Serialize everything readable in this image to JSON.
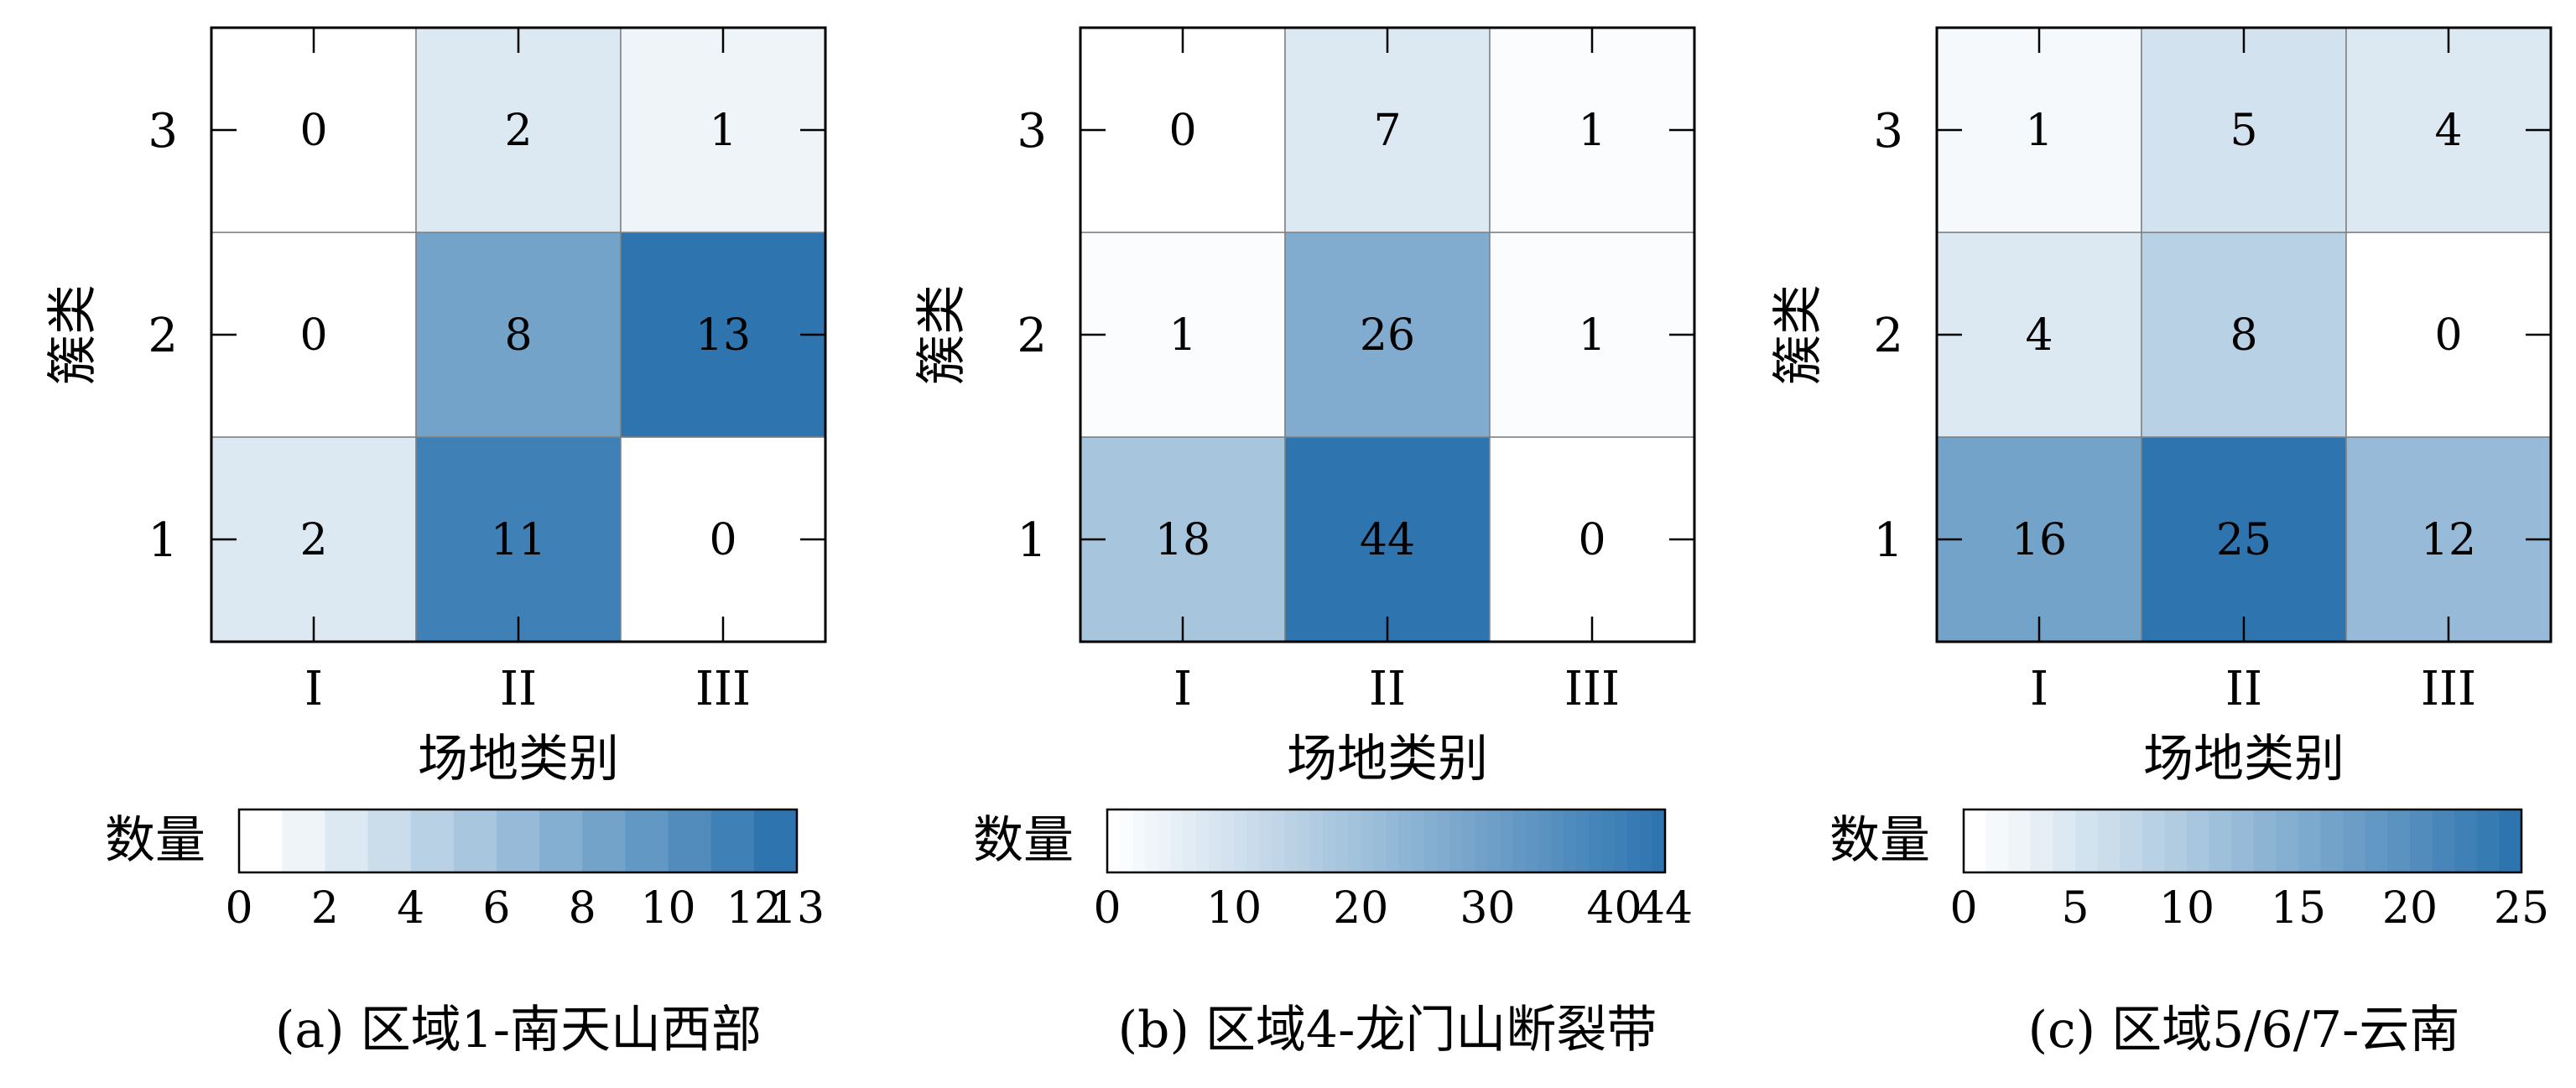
{
  "colors": {
    "low": "#ffffff",
    "high": "#2e75b0",
    "border": "#000000",
    "cell_edge": "#808080"
  },
  "chart_data": [
    {
      "type": "heatmap",
      "caption": "(a) 区域1-南天山西部",
      "xlabel": "场地类别",
      "ylabel": "簇类",
      "x_categories": [
        "I",
        "II",
        "III"
      ],
      "y_categories": [
        "1",
        "2",
        "3"
      ],
      "values": [
        [
          2,
          11,
          0
        ],
        [
          0,
          8,
          13
        ],
        [
          0,
          2,
          1
        ]
      ],
      "colorbar": {
        "label": "数量",
        "min": 0,
        "max": 13,
        "ticks": [
          0,
          2,
          4,
          6,
          8,
          10,
          12,
          13
        ],
        "levels": 13
      }
    },
    {
      "type": "heatmap",
      "caption": "(b) 区域4-龙门山断裂带",
      "xlabel": "场地类别",
      "ylabel": "簇类",
      "x_categories": [
        "I",
        "II",
        "III"
      ],
      "y_categories": [
        "1",
        "2",
        "3"
      ],
      "values": [
        [
          18,
          44,
          0
        ],
        [
          1,
          26,
          1
        ],
        [
          0,
          7,
          1
        ]
      ],
      "colorbar": {
        "label": "数量",
        "min": 0,
        "max": 44,
        "ticks": [
          0,
          10,
          20,
          30,
          40,
          44
        ],
        "levels": 44
      }
    },
    {
      "type": "heatmap",
      "caption": "(c) 区域5/6/7-云南",
      "xlabel": "场地类别",
      "ylabel": "簇类",
      "x_categories": [
        "I",
        "II",
        "III"
      ],
      "y_categories": [
        "1",
        "2",
        "3"
      ],
      "values": [
        [
          16,
          25,
          12
        ],
        [
          4,
          8,
          0
        ],
        [
          1,
          5,
          4
        ]
      ],
      "colorbar": {
        "label": "数量",
        "min": 0,
        "max": 25,
        "ticks": [
          0,
          5,
          10,
          15,
          20,
          25
        ],
        "levels": 25
      }
    }
  ]
}
